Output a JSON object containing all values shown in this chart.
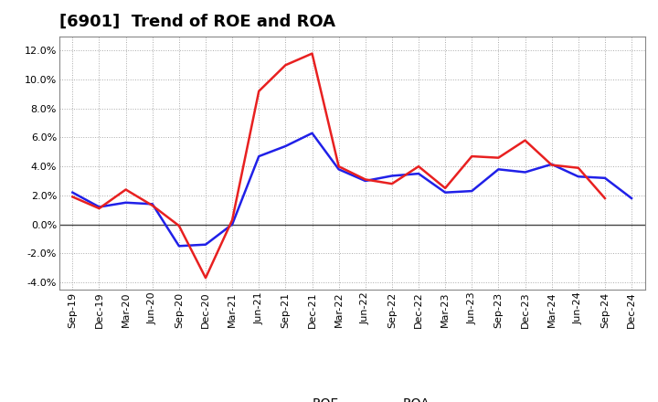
{
  "title": "[6901]  Trend of ROE and ROA",
  "labels": [
    "Sep-19",
    "Dec-19",
    "Mar-20",
    "Jun-20",
    "Sep-20",
    "Dec-20",
    "Mar-21",
    "Jun-21",
    "Sep-21",
    "Dec-21",
    "Mar-22",
    "Jun-22",
    "Sep-22",
    "Dec-22",
    "Mar-23",
    "Jun-23",
    "Sep-23",
    "Dec-23",
    "Mar-24",
    "Jun-24",
    "Sep-24",
    "Dec-24"
  ],
  "ROE": [
    1.9,
    1.1,
    2.4,
    1.3,
    -0.1,
    -3.7,
    0.3,
    9.2,
    11.0,
    11.8,
    4.0,
    3.1,
    2.8,
    4.0,
    2.5,
    4.7,
    4.6,
    5.8,
    4.1,
    3.9,
    1.8,
    null
  ],
  "ROA": [
    2.2,
    1.2,
    1.5,
    1.4,
    -1.5,
    -1.4,
    0.0,
    4.7,
    5.4,
    6.3,
    3.8,
    3.0,
    3.35,
    3.5,
    2.2,
    2.3,
    3.8,
    3.6,
    4.15,
    3.3,
    3.2,
    1.8
  ],
  "roe_color": "#e82020",
  "roa_color": "#2020e8",
  "line_width": 1.8,
  "ylim": [
    -4.5,
    13.0
  ],
  "yticks": [
    -4.0,
    -2.0,
    0.0,
    2.0,
    4.0,
    6.0,
    8.0,
    10.0,
    12.0
  ],
  "background_color": "#ffffff",
  "plot_bg_color": "#ffffff",
  "grid_color": "#aaaaaa",
  "title_fontsize": 13,
  "tick_fontsize": 8,
  "legend_fontsize": 10
}
